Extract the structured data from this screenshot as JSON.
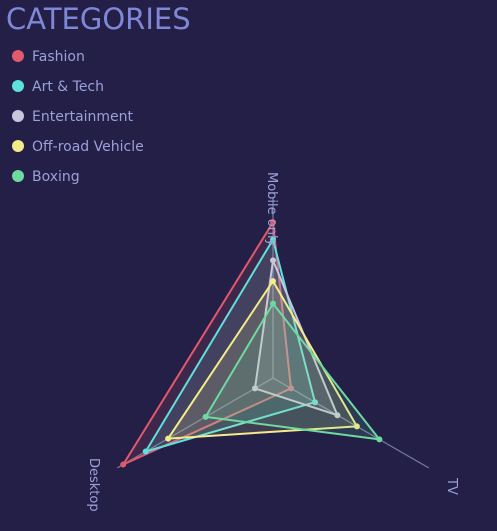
{
  "chart_data": {
    "type": "radar",
    "title": "CATEGORIES",
    "axes": [
      "Mobile only",
      "TV",
      "Desktop"
    ],
    "rmax": 100,
    "legend_position": "top-left",
    "grid": false,
    "series": [
      {
        "name": "Fashion",
        "color": "#e05a6e",
        "values": [
          90,
          12,
          100
        ]
      },
      {
        "name": "Art & Tech",
        "color": "#5ee0dc",
        "values": [
          80,
          28,
          85
        ]
      },
      {
        "name": "Entertainment",
        "color": "#c9c6dc",
        "values": [
          68,
          43,
          12
        ]
      },
      {
        "name": "Off-road Vehicle",
        "color": "#f4ec8a",
        "values": [
          56,
          56,
          70
        ]
      },
      {
        "name": "Boxing",
        "color": "#6ed9a0",
        "values": [
          43,
          71,
          45
        ]
      }
    ]
  }
}
